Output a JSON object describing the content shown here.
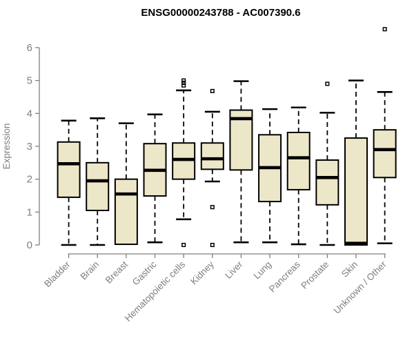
{
  "page": {
    "background": "#ffffff"
  },
  "chart_data": {
    "type": "boxplot",
    "title": "ENSG00000243788 - AC007390.6",
    "ylabel": "Expression",
    "xlabel": "",
    "ylim": [
      0,
      6.6
    ],
    "yticks": [
      0,
      1,
      2,
      3,
      4,
      5,
      6
    ],
    "grid": false,
    "legend": false,
    "categories": [
      "Bladder",
      "Brain",
      "Breast",
      "Gastric",
      "Hematopoietic cells",
      "Kidney",
      "Liver",
      "Lung",
      "Pancreas",
      "Prostate",
      "Skin",
      "Unknown / Other"
    ],
    "series": [
      {
        "name": "Bladder",
        "whisker_low": 0.0,
        "q1": 1.45,
        "median": 2.47,
        "q3": 3.13,
        "whisker_high": 3.78,
        "outliers": []
      },
      {
        "name": "Brain",
        "whisker_low": 0.0,
        "q1": 1.05,
        "median": 1.95,
        "q3": 2.5,
        "whisker_high": 3.85,
        "outliers": []
      },
      {
        "name": "Breast",
        "whisker_low": 0.02,
        "q1": 0.02,
        "median": 1.55,
        "q3": 2.0,
        "whisker_high": 3.7,
        "outliers": []
      },
      {
        "name": "Gastric",
        "whisker_low": 0.08,
        "q1": 1.49,
        "median": 2.27,
        "q3": 3.08,
        "whisker_high": 3.97,
        "outliers": []
      },
      {
        "name": "Hematopoietic cells",
        "whisker_low": 0.78,
        "q1": 2.0,
        "median": 2.6,
        "q3": 3.1,
        "whisker_high": 4.7,
        "outliers": [
          4.85,
          4.93,
          5.0,
          0.0
        ]
      },
      {
        "name": "Kidney",
        "whisker_low": 1.93,
        "q1": 2.3,
        "median": 2.62,
        "q3": 3.1,
        "whisker_high": 4.05,
        "outliers": [
          4.68,
          1.15,
          0.0
        ]
      },
      {
        "name": "Liver",
        "whisker_low": 0.08,
        "q1": 2.28,
        "median": 3.84,
        "q3": 4.1,
        "whisker_high": 4.98,
        "outliers": []
      },
      {
        "name": "Lung",
        "whisker_low": 0.08,
        "q1": 1.32,
        "median": 2.35,
        "q3": 3.35,
        "whisker_high": 4.13,
        "outliers": []
      },
      {
        "name": "Pancreas",
        "whisker_low": 0.02,
        "q1": 1.68,
        "median": 2.65,
        "q3": 3.42,
        "whisker_high": 4.18,
        "outliers": []
      },
      {
        "name": "Prostate",
        "whisker_low": 0.0,
        "q1": 1.22,
        "median": 2.05,
        "q3": 2.58,
        "whisker_high": 4.02,
        "outliers": [
          4.9
        ]
      },
      {
        "name": "Skin",
        "whisker_low": 0.0,
        "q1": 0.0,
        "median": 0.05,
        "q3": 3.25,
        "whisker_high": 5.0,
        "outliers": []
      },
      {
        "name": "Unknown / Other",
        "whisker_low": 0.05,
        "q1": 2.05,
        "median": 2.9,
        "q3": 3.5,
        "whisker_high": 4.65,
        "outliers": [
          6.56
        ]
      }
    ],
    "colors": {
      "box_fill": "#EDE7C9",
      "box_border": "#000000",
      "median": "#000000",
      "whisker": "#000000",
      "outlier": "#000000",
      "axis": "#7e7e7e",
      "tick_text": "#7e7e7e",
      "title_text": "#000000"
    }
  }
}
